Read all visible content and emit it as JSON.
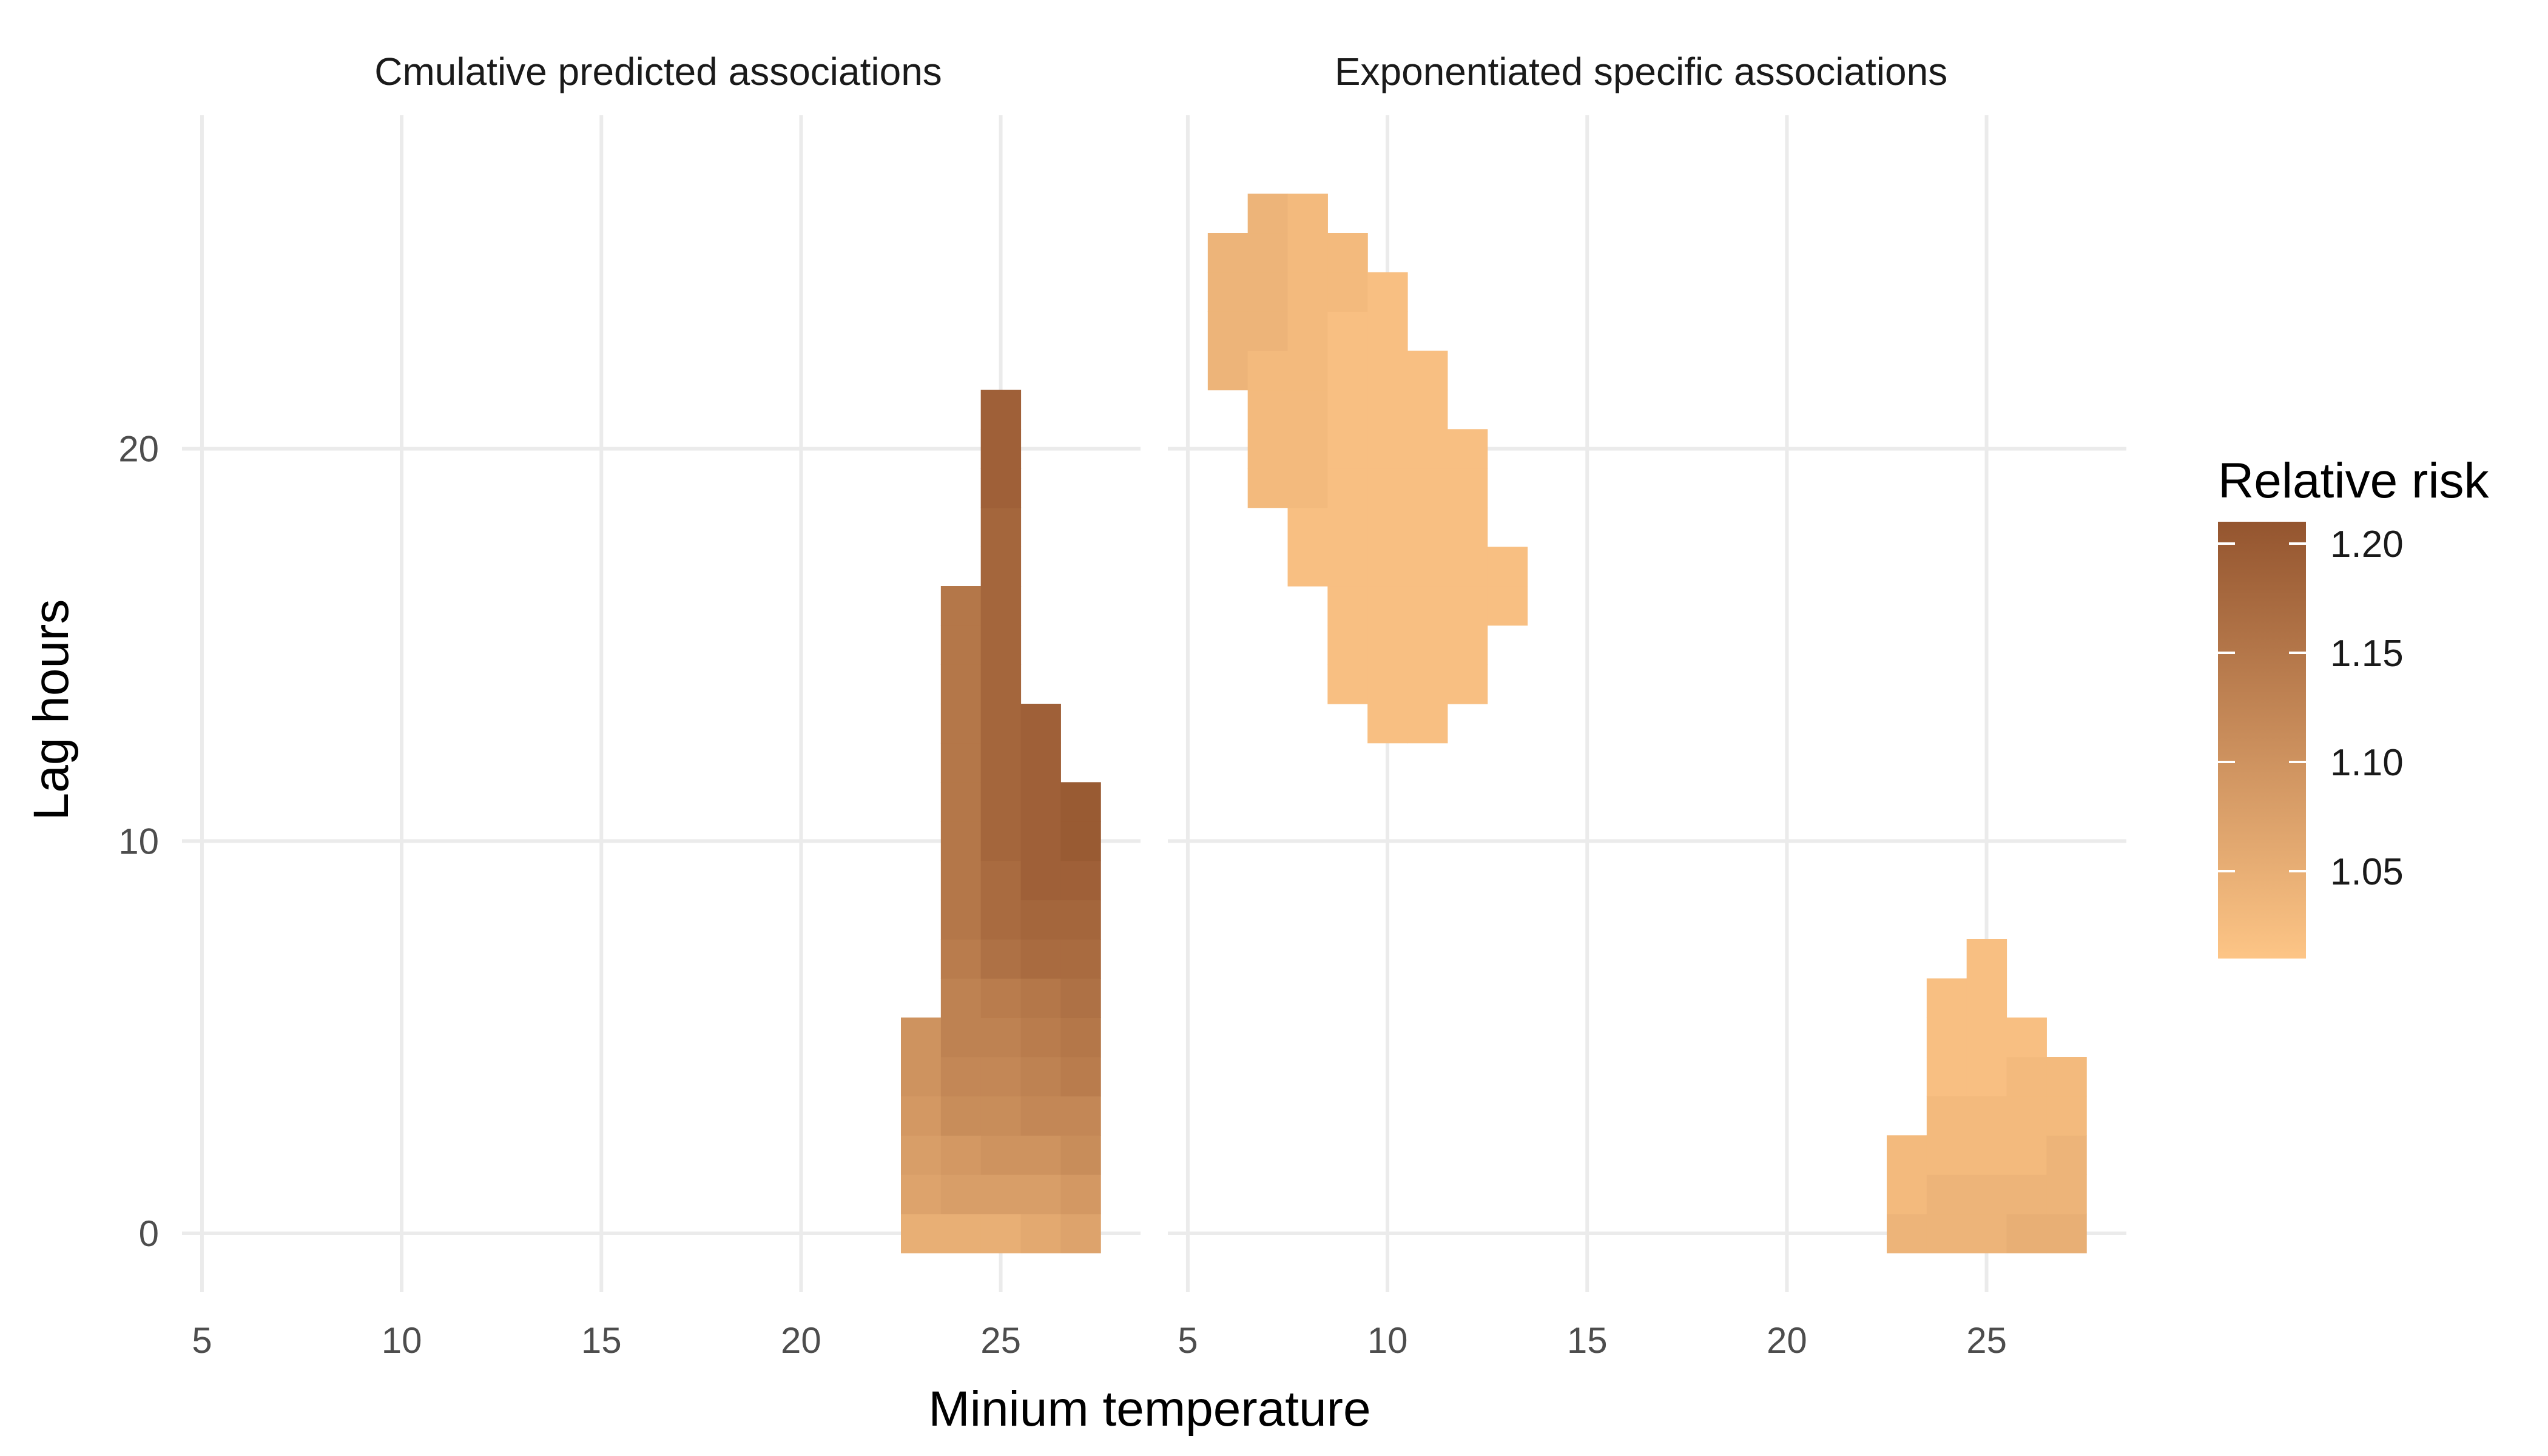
{
  "chart_data": {
    "type": "heatmap",
    "xlabel": "Minium temperature",
    "ylabel": "Lag hours",
    "xlim": [
      4.5,
      28.5
    ],
    "ylim": [
      -1.5,
      28.5
    ],
    "x_ticks": [
      5,
      10,
      15,
      20,
      25
    ],
    "y_ticks": [
      0,
      10,
      20
    ],
    "grid": true,
    "legend": {
      "title": "Relative risk",
      "position": "right",
      "ticks": [
        1.05,
        1.1,
        1.15,
        1.2
      ],
      "range": [
        1.01,
        1.21
      ],
      "color_low": "#FDC586",
      "color_high": "#94552F"
    },
    "panels": [
      {
        "title": "Cmulative predicted associations",
        "columns": [
          {
            "x": 23,
            "values": [
              1.05,
              1.07,
              1.08,
              1.09,
              1.1,
              1.1
            ]
          },
          {
            "x": 24,
            "values": [
              1.05,
              1.08,
              1.09,
              1.11,
              1.12,
              1.13,
              1.13,
              1.14,
              1.15,
              1.15,
              1.15,
              1.15,
              1.15,
              1.15,
              1.15,
              1.15,
              1.15
            ]
          },
          {
            "x": 25,
            "values": [
              1.05,
              1.08,
              1.1,
              1.11,
              1.12,
              1.13,
              1.14,
              1.16,
              1.17,
              1.17,
              1.18,
              1.18,
              1.18,
              1.18,
              1.18,
              1.18,
              1.18,
              1.18,
              1.18,
              1.19,
              1.19,
              1.19
            ]
          },
          {
            "x": 26,
            "values": [
              1.06,
              1.08,
              1.1,
              1.12,
              1.13,
              1.14,
              1.15,
              1.17,
              1.18,
              1.19,
              1.19,
              1.19,
              1.19,
              1.19
            ]
          },
          {
            "x": 27,
            "values": [
              1.07,
              1.09,
              1.11,
              1.12,
              1.14,
              1.15,
              1.16,
              1.17,
              1.18,
              1.19,
              1.2,
              1.2
            ]
          }
        ]
      },
      {
        "title": "Exponentiated specific associations",
        "columns": [
          {
            "x": 6,
            "y_start": 22,
            "values": [
              1.04,
              1.04,
              1.04,
              1.04
            ]
          },
          {
            "x": 7,
            "y_start": 19,
            "values": [
              1.03,
              1.03,
              1.03,
              1.03,
              1.04,
              1.04,
              1.04,
              1.04
            ]
          },
          {
            "x": 8,
            "y_start": 17,
            "values": [
              1.02,
              1.02,
              1.03,
              1.03,
              1.03,
              1.03,
              1.03,
              1.03,
              1.03,
              1.03
            ]
          },
          {
            "x": 9,
            "y_start": 14,
            "values": [
              1.02,
              1.02,
              1.02,
              1.02,
              1.02,
              1.02,
              1.02,
              1.02,
              1.02,
              1.02,
              1.03,
              1.03
            ]
          },
          {
            "x": 10,
            "y_start": 13,
            "values": [
              1.02,
              1.02,
              1.02,
              1.02,
              1.02,
              1.02,
              1.02,
              1.02,
              1.02,
              1.02,
              1.02,
              1.02
            ]
          },
          {
            "x": 11,
            "y_start": 13,
            "values": [
              1.02,
              1.02,
              1.02,
              1.02,
              1.02,
              1.02,
              1.02,
              1.02,
              1.02,
              1.02
            ]
          },
          {
            "x": 12,
            "y_start": 14,
            "values": [
              1.02,
              1.02,
              1.02,
              1.02,
              1.02,
              1.02,
              1.02
            ]
          },
          {
            "x": 13,
            "y_start": 16,
            "values": [
              1.02,
              1.02
            ]
          },
          {
            "x": 23,
            "y_start": 0,
            "values": [
              1.04,
              1.03,
              1.03
            ]
          },
          {
            "x": 24,
            "y_start": 0,
            "values": [
              1.04,
              1.04,
              1.03,
              1.03,
              1.02,
              1.02,
              1.02
            ]
          },
          {
            "x": 25,
            "y_start": 0,
            "values": [
              1.04,
              1.04,
              1.03,
              1.03,
              1.02,
              1.02,
              1.02,
              1.02
            ]
          },
          {
            "x": 26,
            "y_start": 0,
            "values": [
              1.05,
              1.04,
              1.03,
              1.03,
              1.03,
              1.02
            ]
          },
          {
            "x": 27,
            "y_start": 0,
            "values": [
              1.05,
              1.04,
              1.04,
              1.03,
              1.03
            ]
          }
        ]
      }
    ]
  }
}
